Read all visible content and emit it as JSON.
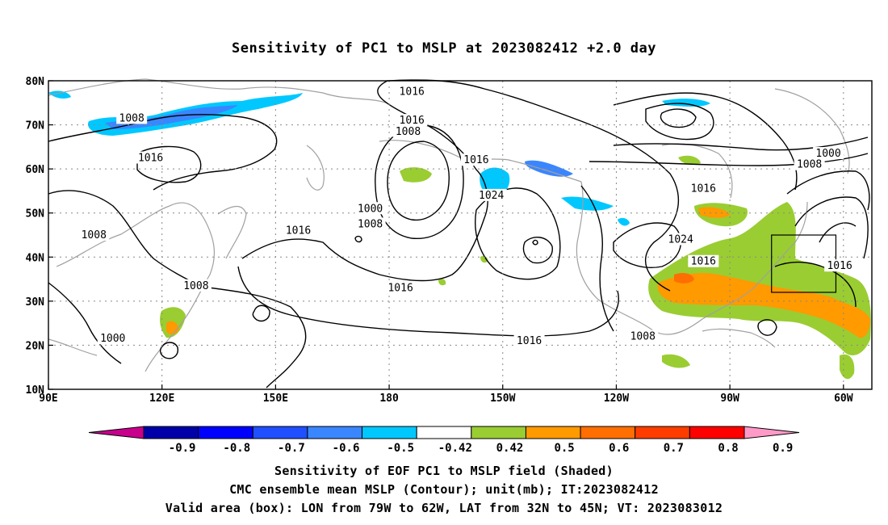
{
  "title": "Sensitivity of PC1 to MSLP at 2023082412 +2.0 day",
  "map": {
    "lat_labels": [
      "80N",
      "70N",
      "60N",
      "50N",
      "40N",
      "30N",
      "20N",
      "10N"
    ],
    "lon_labels": [
      "90E",
      "120E",
      "150E",
      "180",
      "150W",
      "120W",
      "90W",
      "60W"
    ],
    "contour_labels": [
      {
        "text": "1016",
        "lon": -174,
        "lat": 77.5
      },
      {
        "text": "1016",
        "lon": -174,
        "lat": 71
      },
      {
        "text": "1008",
        "lon": -175,
        "lat": 68.5
      },
      {
        "text": "1008",
        "lon": 112,
        "lat": 71.5
      },
      {
        "text": "1016",
        "lon": 117,
        "lat": 62.5
      },
      {
        "text": "1016",
        "lon": -157,
        "lat": 62
      },
      {
        "text": "1024",
        "lon": -153,
        "lat": 54
      },
      {
        "text": "1000",
        "lon": -185,
        "lat": 51
      },
      {
        "text": "1008",
        "lon": -185,
        "lat": 47.5
      },
      {
        "text": "1016",
        "lon": 156,
        "lat": 46
      },
      {
        "text": "1008",
        "lon": 102,
        "lat": 45
      },
      {
        "text": "1016",
        "lon": -177,
        "lat": 33
      },
      {
        "text": "1008",
        "lon": 129,
        "lat": 33.5
      },
      {
        "text": "1000",
        "lon": 107,
        "lat": 21.5
      },
      {
        "text": "1016",
        "lon": -143,
        "lat": 21
      },
      {
        "text": "1008",
        "lon": -113,
        "lat": 22
      },
      {
        "text": "1024",
        "lon": -103,
        "lat": 44
      },
      {
        "text": "1016",
        "lon": -97,
        "lat": 39
      },
      {
        "text": "1016",
        "lon": -61,
        "lat": 38
      },
      {
        "text": "1000",
        "lon": -64,
        "lat": 63.5
      },
      {
        "text": "1008",
        "lon": -69,
        "lat": 61
      },
      {
        "text": "1016",
        "lon": -97,
        "lat": 55.5
      }
    ],
    "valid_box": {
      "lon_min": -79,
      "lon_max": -62,
      "lat_min": 32,
      "lat_max": 45
    }
  },
  "colorbar": {
    "labels": [
      "-0.9",
      "-0.8",
      "-0.7",
      "-0.6",
      "-0.5",
      "-0.42",
      "0.42",
      "0.5",
      "0.6",
      "0.7",
      "0.8",
      "0.9"
    ],
    "colors": [
      "#0000a8",
      "#0000ff",
      "#1f4fff",
      "#3a86ff",
      "#00c8ff",
      "#ffffff",
      "#9acd32",
      "#ff9a00",
      "#ff6e00",
      "#ff3c00",
      "#ff0000"
    ],
    "low_end_color": "#c8008c",
    "high_end_color": "#ff9ac8"
  },
  "shading": {
    "colors": {
      "blue_light": "#00c8ff",
      "blue_mid": "#3a86ff",
      "green": "#9acd32",
      "orange": "#ff9a00",
      "dark_orange": "#ff6e00",
      "coast": "#a0a0a0"
    }
  },
  "footer": {
    "line1": "Sensitivity of EOF PC1 to MSLP field (Shaded)",
    "line2": "CMC ensemble mean MSLP (Contour); unit(mb); IT:2023082412",
    "line3": "Valid area (box): LON from 79W to 62W, LAT from 32N to 45N; VT: 2023083012"
  }
}
